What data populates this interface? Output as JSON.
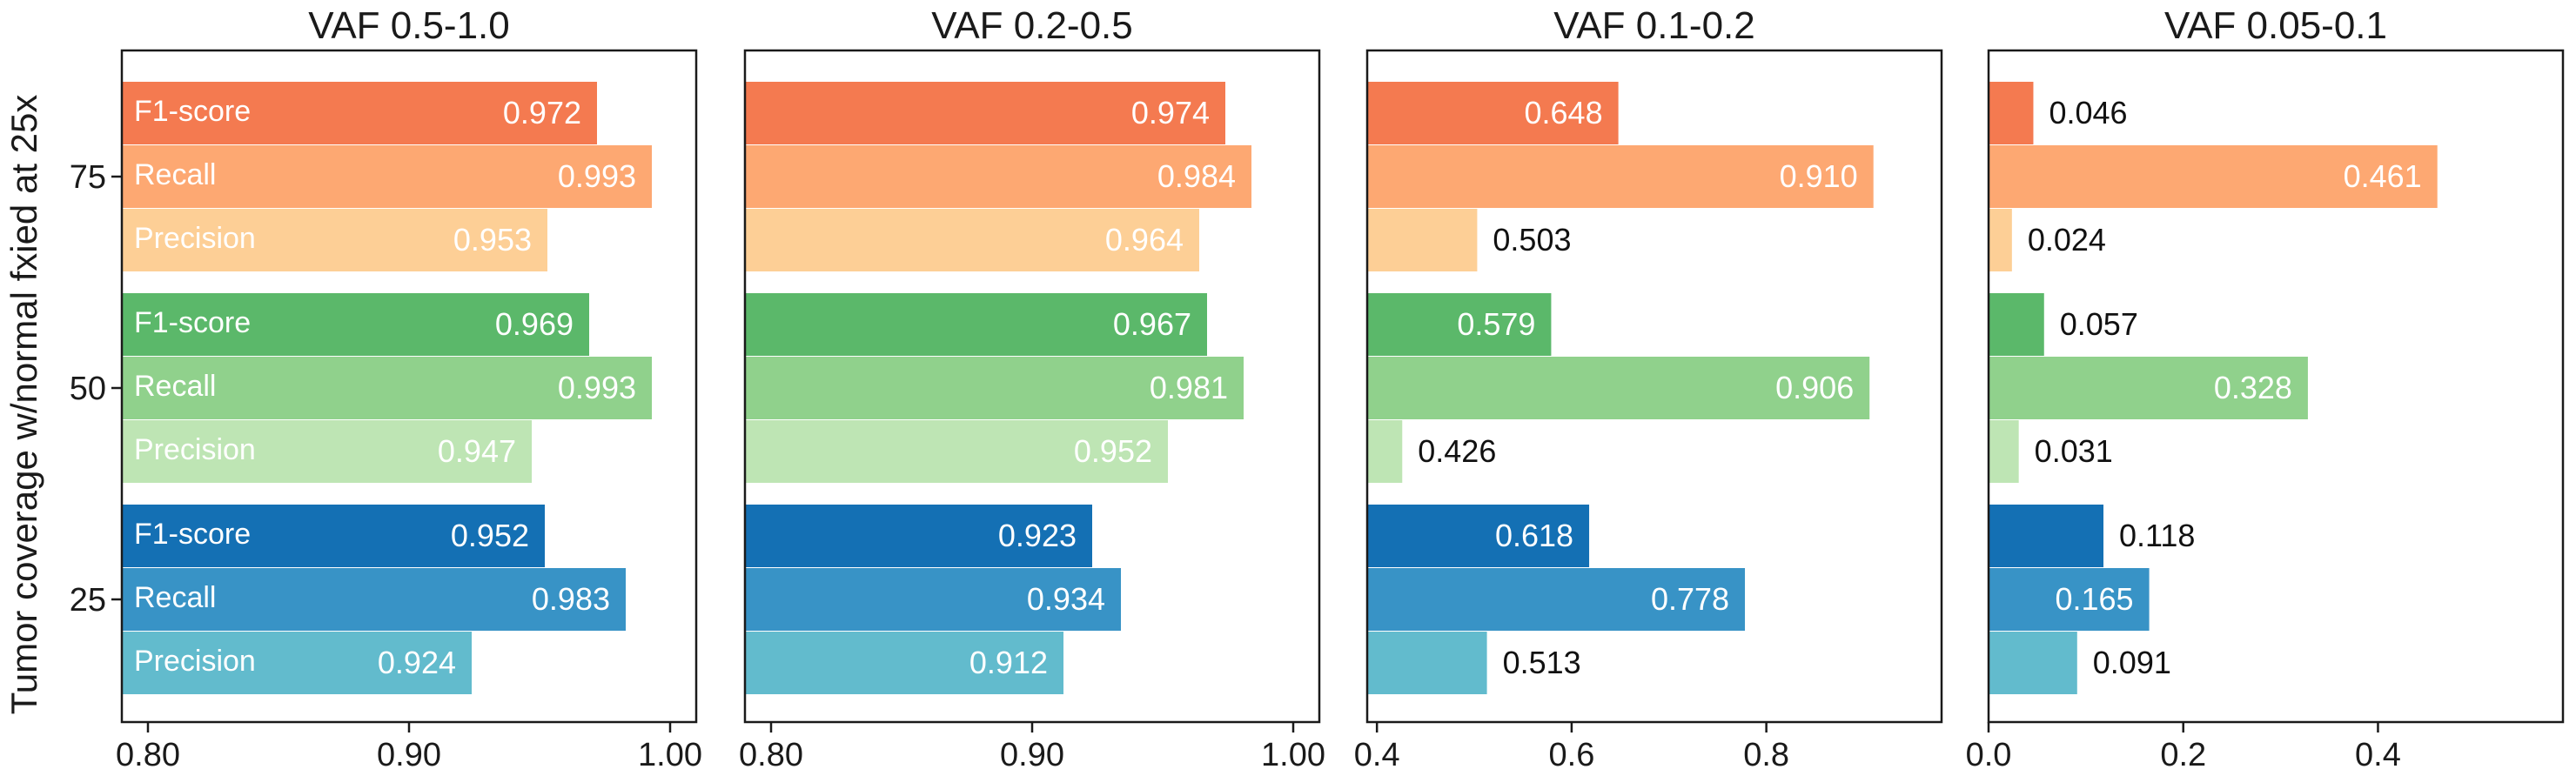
{
  "chart_data": [
    {
      "type": "bar",
      "orientation": "horizontal",
      "title": "VAF 0.5-1.0",
      "ylabel": "Tumor coverage w/normal fxied at 25x",
      "xlim": [
        0.79,
        1.01
      ],
      "xticks": [
        "0.80",
        "0.90",
        "1.00"
      ],
      "groups": [
        "75",
        "50",
        "25"
      ],
      "metrics": [
        "F1-score",
        "Recall",
        "Precision"
      ],
      "show_metric_labels": true,
      "values": {
        "75": [
          0.972,
          0.993,
          0.953
        ],
        "50": [
          0.969,
          0.993,
          0.947
        ],
        "25": [
          0.952,
          0.983,
          0.924
        ]
      },
      "value_labels": {
        "75": [
          "0.972",
          "0.993",
          "0.953"
        ],
        "50": [
          "0.969",
          "0.993",
          "0.947"
        ],
        "25": [
          "0.952",
          "0.983",
          "0.924"
        ]
      }
    },
    {
      "type": "bar",
      "orientation": "horizontal",
      "title": "VAF 0.2-0.5",
      "xlim": [
        0.79,
        1.01
      ],
      "xticks": [
        "0.80",
        "0.90",
        "1.00"
      ],
      "groups": [
        "75",
        "50",
        "25"
      ],
      "metrics": [
        "F1-score",
        "Recall",
        "Precision"
      ],
      "show_metric_labels": false,
      "values": {
        "75": [
          0.974,
          0.984,
          0.964
        ],
        "50": [
          0.967,
          0.981,
          0.952
        ],
        "25": [
          0.923,
          0.934,
          0.912
        ]
      },
      "value_labels": {
        "75": [
          "0.974",
          "0.984",
          "0.964"
        ],
        "50": [
          "0.967",
          "0.981",
          "0.952"
        ],
        "25": [
          "0.923",
          "0.934",
          "0.912"
        ]
      }
    },
    {
      "type": "bar",
      "orientation": "horizontal",
      "title": "VAF 0.1-0.2",
      "xlim": [
        0.39,
        0.98
      ],
      "xticks": [
        "0.4",
        "0.6",
        "0.8"
      ],
      "groups": [
        "75",
        "50",
        "25"
      ],
      "metrics": [
        "F1-score",
        "Recall",
        "Precision"
      ],
      "show_metric_labels": false,
      "values": {
        "75": [
          0.648,
          0.91,
          0.503
        ],
        "50": [
          0.579,
          0.906,
          0.426
        ],
        "25": [
          0.618,
          0.778,
          0.513
        ]
      },
      "value_labels": {
        "75": [
          "0.648",
          "0.910",
          "0.503"
        ],
        "50": [
          "0.579",
          "0.906",
          "0.426"
        ],
        "25": [
          "0.618",
          "0.778",
          "0.513"
        ]
      }
    },
    {
      "type": "bar",
      "orientation": "horizontal",
      "title": "VAF 0.05-0.1",
      "xlim": [
        0.0,
        0.59
      ],
      "xticks": [
        "0.0",
        "0.2",
        "0.4"
      ],
      "groups": [
        "75",
        "50",
        "25"
      ],
      "metrics": [
        "F1-score",
        "Recall",
        "Precision"
      ],
      "show_metric_labels": false,
      "values": {
        "75": [
          0.046,
          0.461,
          0.024
        ],
        "50": [
          0.057,
          0.328,
          0.031
        ],
        "25": [
          0.118,
          0.165,
          0.091
        ]
      },
      "value_labels": {
        "75": [
          "0.046",
          "0.461",
          "0.024"
        ],
        "50": [
          "0.057",
          "0.328",
          "0.031"
        ],
        "25": [
          "0.118",
          "0.165",
          "0.091"
        ]
      }
    }
  ],
  "colors": {
    "75": [
      "#f47a50",
      "#fda872",
      "#fdcf96"
    ],
    "50": [
      "#5bb86a",
      "#90d18c",
      "#bee5b4"
    ],
    "25": [
      "#1470b4",
      "#3893c6",
      "#62bbcd"
    ]
  }
}
